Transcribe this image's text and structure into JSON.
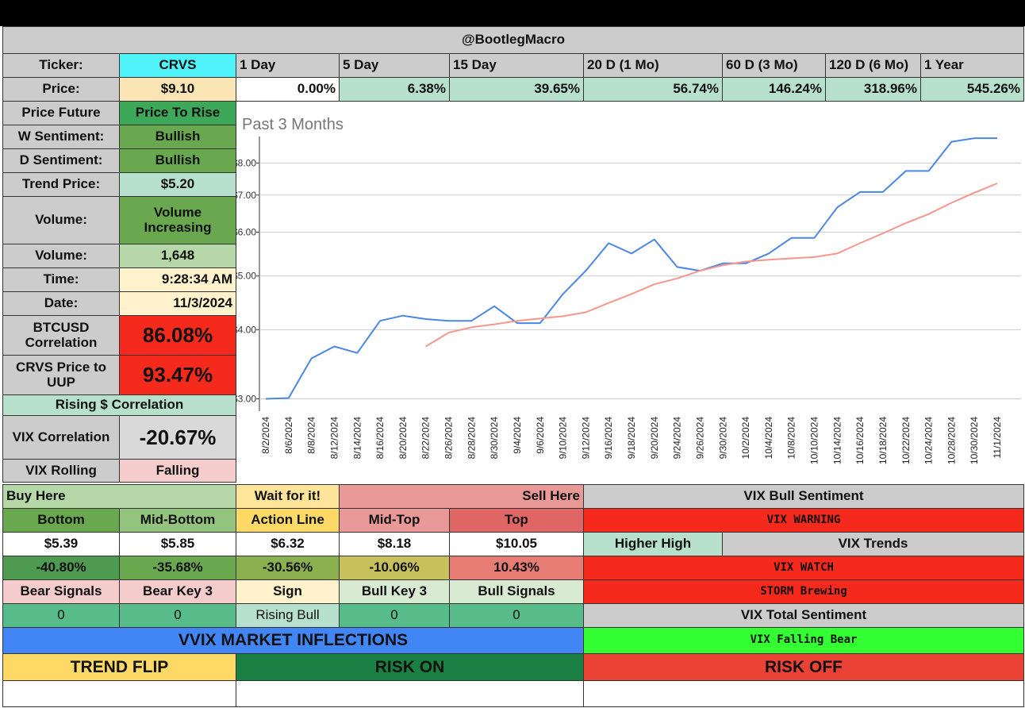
{
  "header": {
    "title": "@BootlegMacro"
  },
  "ticker": {
    "label": "Ticker:",
    "symbol": "CRVS"
  },
  "price": {
    "label": "Price:",
    "value": "$9.10"
  },
  "returns": [
    {
      "period": "1 Day",
      "change": "0.00%"
    },
    {
      "period": "5 Day",
      "change": "6.38%"
    },
    {
      "period": "15 Day",
      "change": "39.65%"
    },
    {
      "period": "20 D (1 Mo)",
      "change": "56.74%"
    },
    {
      "period": "60 D (3 Mo)",
      "change": "146.24%"
    },
    {
      "period": "120 D (6 Mo)",
      "change": "318.96%"
    },
    {
      "period": "1 Year",
      "change": "545.26%"
    }
  ],
  "stats": [
    {
      "label": "Price Future",
      "value": "Price To Rise"
    },
    {
      "label": "W Sentiment:",
      "value": "Bullish"
    },
    {
      "label": "D Sentiment:",
      "value": "Bullish"
    },
    {
      "label": "Trend Price:",
      "value": "$5.20"
    },
    {
      "label": "Volume:",
      "value": "Volume Increasing"
    },
    {
      "label": "Volume:",
      "value": "1,648"
    },
    {
      "label": "Time:",
      "value": "9:28:34 AM"
    },
    {
      "label": "Date:",
      "value": "11/3/2024"
    },
    {
      "label": "BTCUSD Correlation",
      "value": "86.08%"
    },
    {
      "label": "CRVS Price to UUP",
      "value": "93.47%"
    }
  ],
  "rising_correlation": "Rising $ Correlation",
  "vix_stats": [
    {
      "label": "VIX Correlation",
      "value": "-20.67%"
    },
    {
      "label": "VIX Rolling",
      "value": "Falling"
    }
  ],
  "zones": {
    "buy": "Buy Here",
    "wait": "Wait for it!",
    "sell": "Sell Here"
  },
  "levels": [
    {
      "name": "Bottom",
      "price": "$5.39",
      "change": "-40.80%"
    },
    {
      "name": "Mid-Bottom",
      "price": "$5.85",
      "change": "-35.68%"
    },
    {
      "name": "Action Line",
      "price": "$6.32",
      "change": "-30.56%"
    },
    {
      "name": "Mid-Top",
      "price": "$8.18",
      "change": "-10.06%"
    },
    {
      "name": "Top",
      "price": "$10.05",
      "change": "10.43%"
    }
  ],
  "signals": [
    {
      "name": "Bear Signals",
      "value": 0
    },
    {
      "name": "Bear Key 3",
      "value": 0
    },
    {
      "name": "Sign",
      "value": "Rising Bull"
    },
    {
      "name": "Bull Key 3",
      "value": 0
    },
    {
      "name": "Bull Signals",
      "value": 0
    }
  ],
  "vix": {
    "bull_sentiment": "VIX Bull Sentiment",
    "warning": "VIX WARNING",
    "higher_high": "Higher High",
    "trends": "VIX Trends",
    "watch": "VIX WATCH",
    "storm": "STORM Brewing",
    "total_sentiment": "VIX Total Sentiment",
    "falling_bear": "VIX Falling Bear"
  },
  "inflections": {
    "title": "VVIX MARKET INFLECTIONS",
    "trend_flip": "TREND FLIP",
    "risk_on": "RISK ON",
    "risk_off": "RISK OFF"
  },
  "chart_data": {
    "type": "line",
    "title": "Past 3 Months",
    "log_scale": true,
    "grid": true,
    "categories": [
      "8/2/2024",
      "8/6/2024",
      "8/8/2024",
      "8/12/2024",
      "8/14/2024",
      "8/16/2024",
      "8/20/2024",
      "8/22/2024",
      "8/26/2024",
      "8/28/2024",
      "8/30/2024",
      "9/4/2024",
      "9/6/2024",
      "9/10/2024",
      "9/12/2024",
      "9/16/2024",
      "9/18/2024",
      "9/20/2024",
      "9/24/2024",
      "9/26/2024",
      "9/30/2024",
      "10/2/2024",
      "10/4/2024",
      "10/8/2024",
      "10/10/2024",
      "10/14/2024",
      "10/16/2024",
      "10/18/2024",
      "10/22/2024",
      "10/24/2024",
      "10/28/2024",
      "10/30/2024",
      "11/1/2024"
    ],
    "series": [
      {
        "color": "#4a86e8",
        "values": [
          3.0,
          3.01,
          3.55,
          3.73,
          3.63,
          4.15,
          4.24,
          4.18,
          4.15,
          4.15,
          4.41,
          4.11,
          4.11,
          4.64,
          5.11,
          5.73,
          5.49,
          5.82,
          5.19,
          5.11,
          5.27,
          5.27,
          5.49,
          5.86,
          5.86,
          6.65,
          7.09,
          7.09,
          7.74,
          7.74,
          8.74,
          8.87,
          8.87
        ]
      },
      {
        "color": "#f4978e",
        "values": [
          null,
          null,
          null,
          null,
          null,
          null,
          null,
          3.73,
          3.95,
          4.04,
          4.09,
          4.15,
          4.19,
          4.23,
          4.3,
          4.47,
          4.64,
          4.83,
          4.95,
          5.11,
          5.23,
          5.31,
          5.35,
          5.38,
          5.41,
          5.49,
          5.73,
          5.97,
          6.23,
          6.47,
          6.78,
          7.07,
          7.35
        ]
      }
    ],
    "ylim": [
      2.85,
      9.05
    ],
    "yticks": [
      {
        "value": 3,
        "label": "$3.00"
      },
      {
        "value": 4,
        "label": "$4.00"
      },
      {
        "value": 5,
        "label": "$5.00"
      },
      {
        "value": 6,
        "label": "$6.00"
      },
      {
        "value": 7,
        "label": "$7.00"
      },
      {
        "value": 8,
        "label": "$8.00"
      }
    ]
  }
}
